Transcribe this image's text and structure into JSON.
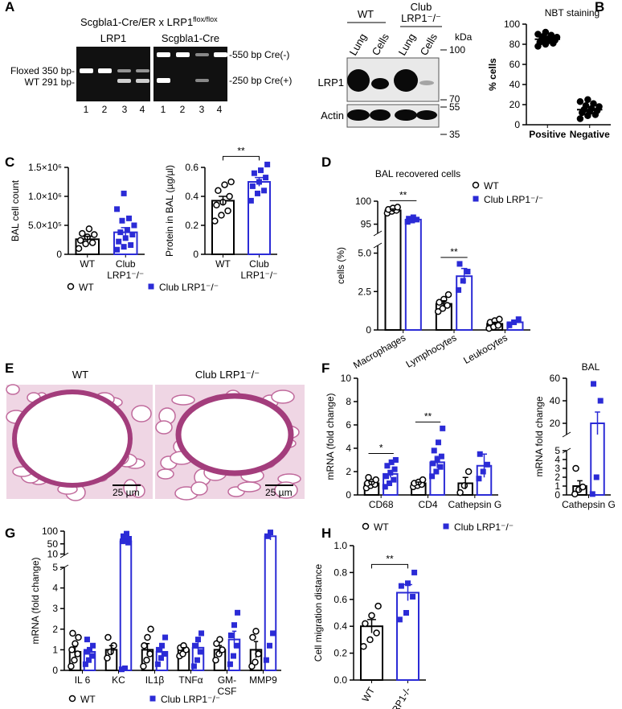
{
  "panels": [
    "A",
    "B",
    "C",
    "D",
    "E",
    "F",
    "G",
    "H"
  ],
  "pcr": {
    "title": "Scgbla1-Cre/ER x LRP1",
    "title_sup": "flox/flox",
    "gels": [
      {
        "label": "LRP1",
        "lanes": [
          "1",
          "2",
          "3",
          "4"
        ]
      },
      {
        "label": "Scgbla1-Cre",
        "lanes": [
          "1",
          "2",
          "3",
          "4"
        ]
      }
    ],
    "left_markers": [
      "Floxed 350 bp-",
      "WT 291 bp-"
    ],
    "right_markers": [
      "-550 bp Cre(-)",
      "-250 bp Cre(+)"
    ]
  },
  "western": {
    "groups": [
      [
        "WT"
      ],
      [
        "Club",
        "LRP1⁻/⁻"
      ]
    ],
    "lanes": [
      "Lung",
      "Cells",
      "Lung",
      "Cells"
    ],
    "rows": [
      "LRP1",
      "Actin"
    ],
    "unit": "kDa",
    "markers": [
      100,
      70,
      55,
      35
    ]
  },
  "histology": {
    "labels": [
      "WT",
      "Club LRP1⁻/⁻"
    ],
    "scale_bars": [
      "25 µm",
      "25 µm"
    ]
  },
  "chart_data": [
    {
      "type": "dot",
      "title": "NBT staining",
      "y_label": "% cells",
      "categories": [
        "Positive",
        "Negative"
      ],
      "ylim": [
        0,
        100
      ],
      "yticks": [
        0,
        20,
        40,
        60,
        80,
        100
      ],
      "series": [
        {
          "color": "#000000",
          "marker": "circle-filled",
          "values": [
            85,
            15
          ],
          "errors": [
            2,
            2
          ],
          "points": [
            [
              78,
              80,
              81,
              82,
              83,
              84,
              85,
              86,
              87,
              88,
              89,
              90,
              92
            ],
            [
              6,
              9,
              10,
              12,
              13,
              14,
              15,
              16,
              18,
              19,
              21,
              23,
              25
            ]
          ]
        }
      ]
    },
    {
      "type": "bar",
      "y_label": "BAL cell count",
      "categories": [
        "WT",
        [
          "Club",
          "LRP1⁻/⁻"
        ]
      ],
      "ylim": [
        0,
        1500000
      ],
      "yticks": [
        0,
        {
          "value": 500000,
          "label": "5.0×10⁵"
        },
        {
          "value": 1000000,
          "label": "1.0×10⁶"
        },
        {
          "value": 1500000,
          "label": "1.5×10⁶"
        }
      ],
      "legend": "bottom",
      "series": [
        {
          "name": "WT",
          "color": "#000000",
          "marker": "circle",
          "values": [
            260000,
            null
          ],
          "errors": [
            50000,
            null
          ],
          "points": [
            [
              100000,
              180000,
              200000,
              240000,
              300000,
              340000,
              360000,
              440000
            ],
            null
          ]
        },
        {
          "name": "Club LRP1⁻/⁻",
          "color": "#2b2bd6",
          "marker": "square",
          "values": [
            null,
            380000
          ],
          "errors": [
            null,
            80000
          ],
          "points": [
            null,
            [
              80000,
              130000,
              160000,
              220000,
              280000,
              340000,
              380000,
              420000,
              500000,
              580000,
              620000,
              780000,
              1050000
            ]
          ]
        }
      ]
    },
    {
      "type": "bar",
      "y_label": "Protein in BAL (µg/µl)",
      "categories": [
        "WT",
        [
          "Club",
          "LRP1⁻/⁻"
        ]
      ],
      "ylim": [
        0,
        0.6
      ],
      "yticks": [
        0,
        0.2,
        0.4,
        0.6
      ],
      "annotation": "**",
      "series": [
        {
          "color": "#000000",
          "marker": "circle",
          "values": [
            0.37,
            null
          ],
          "errors": [
            0.03,
            null
          ],
          "points": [
            [
              0.23,
              0.27,
              0.3,
              0.34,
              0.36,
              0.4,
              0.44,
              0.48,
              0.5
            ],
            null
          ]
        },
        {
          "color": "#2b2bd6",
          "marker": "square",
          "values": [
            null,
            0.5
          ],
          "errors": [
            null,
            0.03
          ],
          "points": [
            null,
            [
              0.37,
              0.42,
              0.44,
              0.47,
              0.5,
              0.53,
              0.56,
              0.58,
              0.62
            ]
          ]
        }
      ]
    },
    {
      "type": "bar",
      "title": "BAL recovered cells",
      "y_label": "cells (%)",
      "categories": [
        "Macrophages",
        "Lymphocytes",
        "Leukocytes"
      ],
      "segments": [
        {
          "ylim": [
            0,
            5.5
          ],
          "yticks": [
            0,
            2.5,
            {
              "value": 5,
              "label": "5.0"
            }
          ]
        },
        {
          "ylim": [
            93,
            100
          ],
          "yticks": [
            95,
            100
          ]
        }
      ],
      "significance": [
        "**",
        "**",
        null
      ],
      "legend": "right",
      "series": [
        {
          "name": "WT",
          "color": "#000000",
          "marker": "circle",
          "values": [
            98,
            1.7,
            0.4
          ],
          "errors": [
            0.3,
            0.2,
            0.1
          ],
          "points": [
            [
              97.4,
              97.8,
              98,
              98.2,
              98.5,
              98.7
            ],
            [
              1.2,
              1.4,
              1.6,
              1.8,
              2,
              2.3
            ],
            [
              0.1,
              0.2,
              0.3,
              0.5,
              0.6,
              0.7
            ]
          ]
        },
        {
          "name": "Club LRP1⁻/⁻",
          "color": "#2b2bd6",
          "marker": "square",
          "values": [
            96,
            3.5,
            0.5
          ],
          "errors": [
            0.3,
            0.5,
            0.1
          ],
          "points": [
            [
              95.5,
              95.8,
              96,
              96.2,
              96.5
            ],
            [
              2.6,
              3.2,
              3.8,
              4.3
            ],
            [
              0.3,
              0.5,
              0.7
            ]
          ]
        }
      ]
    },
    {
      "type": "bar",
      "y_label": "mRNA (fold change)",
      "categories": [
        "CD68",
        "CD4",
        "Cathepsin G"
      ],
      "ylim": [
        0,
        10
      ],
      "yticks": [
        0,
        2,
        4,
        6,
        8,
        10
      ],
      "significance": [
        "*",
        "**",
        null
      ],
      "legend": "bottom",
      "series": [
        {
          "name": "WT",
          "color": "#000000",
          "marker": "circle",
          "values": [
            1,
            1,
            1
          ],
          "errors": [
            0.15,
            0.1,
            0.5
          ],
          "points": [
            [
              0.6,
              0.8,
              0.9,
              1,
              1.1,
              1.3,
              1.5
            ],
            [
              0.7,
              0.8,
              0.9,
              1,
              1.1,
              1.3
            ],
            [
              0.2,
              0.8,
              2
            ]
          ]
        },
        {
          "name": "Club LRP1⁻/⁻",
          "color": "#2b2bd6",
          "marker": "square",
          "values": [
            1.8,
            2.8,
            2.5
          ],
          "errors": [
            0.3,
            0.5,
            1
          ],
          "points": [
            [
              0.7,
              1,
              1.3,
              1.6,
              1.9,
              2.2,
              2.5,
              2.8,
              3
            ],
            [
              1.6,
              2,
              2.4,
              2.7,
              3,
              3.3,
              3.8,
              4.5,
              5.7
            ],
            [
              1.4,
              2,
              2.6,
              3.5
            ]
          ]
        }
      ]
    },
    {
      "type": "bar",
      "title": "BAL",
      "y_label": "mRNA fold change",
      "categories": [
        "Cathepsin G"
      ],
      "segments": [
        {
          "ylim": [
            0,
            5
          ],
          "yticks": [
            0,
            1,
            2,
            3,
            4,
            5
          ]
        },
        {
          "ylim": [
            10,
            60
          ],
          "yticks": [
            20,
            40,
            60
          ]
        }
      ],
      "series": [
        {
          "color": "#000000",
          "marker": "circle",
          "values": [
            1
          ],
          "errors": [
            0.6
          ],
          "points": [
            [
              0.1,
              0.6,
              0.9,
              3
            ]
          ]
        },
        {
          "color": "#2b2bd6",
          "marker": "square",
          "values": [
            20
          ],
          "errors": [
            10
          ],
          "points": [
            [
              0.1,
              2,
              40,
              55
            ]
          ]
        }
      ]
    },
    {
      "type": "bar",
      "y_label": "mRNA (fold change)",
      "categories": [
        "IL 6",
        "KC",
        "IL1β",
        "TNFα",
        [
          "GM-",
          "CSF"
        ],
        "MMP9"
      ],
      "segments": [
        {
          "ylim": [
            0,
            5
          ],
          "yticks": [
            0,
            1,
            2,
            3,
            4,
            5
          ]
        },
        {
          "ylim": [
            5,
            100
          ],
          "yticks": [
            10,
            50,
            100
          ]
        }
      ],
      "legend": "bottom",
      "series": [
        {
          "name": "WT",
          "color": "#000000",
          "marker": "circle",
          "values": [
            0.9,
            1,
            1,
            1,
            1,
            1
          ],
          "errors": [
            0.25,
            0.2,
            0.3,
            0.1,
            0.2,
            0.4
          ],
          "points": [
            [
              0.2,
              0.5,
              0.8,
              1,
              1.3,
              1.6,
              1.8
            ],
            [
              0.6,
              0.9,
              1.2,
              1.6
            ],
            [
              0.2,
              0.5,
              0.8,
              1.2,
              1.6,
              2
            ],
            [
              0.7,
              0.8,
              1,
              1.1,
              1.2
            ],
            [
              0.5,
              0.8,
              1,
              1.3,
              1.5
            ],
            [
              0.2,
              0.4,
              0.8,
              1.6,
              1.9
            ]
          ]
        },
        {
          "name": "Club LRP1⁻/⁻",
          "color": "#2b2bd6",
          "marker": "square",
          "values": [
            0.9,
            60,
            0.9,
            1.1,
            1.5,
            80
          ],
          "errors": [
            0.2,
            5,
            0.2,
            0.3,
            0.4,
            15
          ],
          "points": [
            [
              0.3,
              0.5,
              0.7,
              0.9,
              1,
              1.2,
              1.5
            ],
            [
              0.05,
              0.1,
              55,
              60,
              65,
              70,
              80,
              90
            ],
            [
              0.3,
              0.6,
              0.8,
              1,
              1.2,
              1.6
            ],
            [
              0.2,
              0.5,
              0.9,
              1.2,
              1.5,
              1.8
            ],
            [
              0.3,
              0.7,
              1.2,
              1.7,
              2.2,
              2.8
            ],
            [
              0.5,
              1.2,
              1.8,
              80,
              95
            ]
          ]
        }
      ]
    },
    {
      "type": "bar",
      "y_label": "Cell migration distance",
      "categories": [
        "WT",
        "CLRP1-/-"
      ],
      "ylim": [
        0,
        1
      ],
      "yticks": [
        {
          "value": 0,
          "label": "0.0"
        },
        0.2,
        0.4,
        0.6,
        0.8,
        {
          "value": 1,
          "label": "1.0"
        }
      ],
      "annotation": "**",
      "series": [
        {
          "color": "#000000",
          "marker": "circle",
          "values": [
            0.4,
            null
          ],
          "errors": [
            0.05,
            null
          ],
          "points": [
            [
              0.25,
              0.3,
              0.35,
              0.42,
              0.48,
              0.55
            ],
            null
          ]
        },
        {
          "color": "#2b2bd6",
          "marker": "square",
          "values": [
            null,
            0.65
          ],
          "errors": [
            null,
            0.06
          ],
          "points": [
            null,
            [
              0.45,
              0.5,
              0.62,
              0.7,
              0.72,
              0.8
            ]
          ]
        }
      ]
    }
  ]
}
